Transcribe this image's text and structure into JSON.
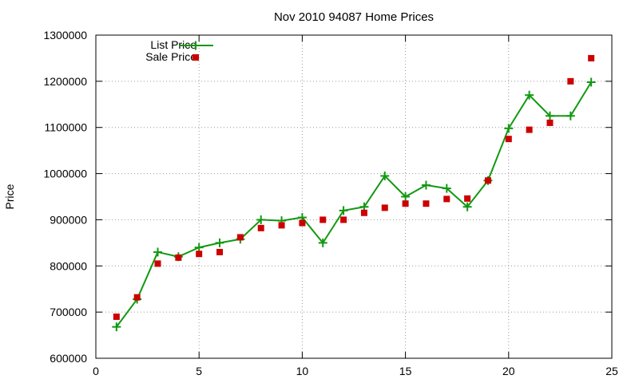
{
  "chart_data": {
    "type": "line",
    "title": "Nov 2010 94087 Home Prices",
    "xlabel": "",
    "ylabel": "Price",
    "xlim": [
      0,
      25
    ],
    "ylim": [
      600000,
      1300000
    ],
    "x_ticks": [
      "0",
      "5",
      "10",
      "15",
      "20",
      "25"
    ],
    "y_ticks": [
      "600000",
      "700000",
      "800000",
      "900000",
      "1000000",
      "1100000",
      "1200000",
      "1300000"
    ],
    "grid": true,
    "legend_position": "top-left",
    "series": [
      {
        "name": "List Price",
        "style": "line-with-plus-markers",
        "color": "#119911",
        "points": [
          [
            1,
            668000
          ],
          [
            2,
            728000
          ],
          [
            3,
            830000
          ],
          [
            4,
            820000
          ],
          [
            5,
            840000
          ],
          [
            6,
            850000
          ],
          [
            7,
            858000
          ],
          [
            8,
            900000
          ],
          [
            9,
            898000
          ],
          [
            10,
            905000
          ],
          [
            11,
            850000
          ],
          [
            12,
            920000
          ],
          [
            13,
            928000
          ],
          [
            14,
            995000
          ],
          [
            15,
            950000
          ],
          [
            16,
            975000
          ],
          [
            17,
            968000
          ],
          [
            18,
            928000
          ],
          [
            19,
            985000
          ],
          [
            20,
            1098000
          ],
          [
            21,
            1170000
          ],
          [
            22,
            1125000
          ],
          [
            23,
            1125000
          ],
          [
            24,
            1198000
          ]
        ]
      },
      {
        "name": "Sale Price",
        "style": "square-markers",
        "color": "#cc0000",
        "points": [
          [
            1,
            690000
          ],
          [
            2,
            732000
          ],
          [
            3,
            805000
          ],
          [
            4,
            818000
          ],
          [
            5,
            826000
          ],
          [
            6,
            830000
          ],
          [
            7,
            862000
          ],
          [
            8,
            882000
          ],
          [
            9,
            888000
          ],
          [
            10,
            893000
          ],
          [
            11,
            900000
          ],
          [
            12,
            900000
          ],
          [
            13,
            915000
          ],
          [
            14,
            926000
          ],
          [
            15,
            935000
          ],
          [
            16,
            935000
          ],
          [
            17,
            945000
          ],
          [
            18,
            946000
          ],
          [
            19,
            985000
          ],
          [
            20,
            1075000
          ],
          [
            21,
            1095000
          ],
          [
            22,
            1110000
          ],
          [
            23,
            1200000
          ],
          [
            24,
            1250000
          ]
        ]
      }
    ],
    "colors": {
      "grid": "#999999",
      "axis": "#000000"
    }
  }
}
